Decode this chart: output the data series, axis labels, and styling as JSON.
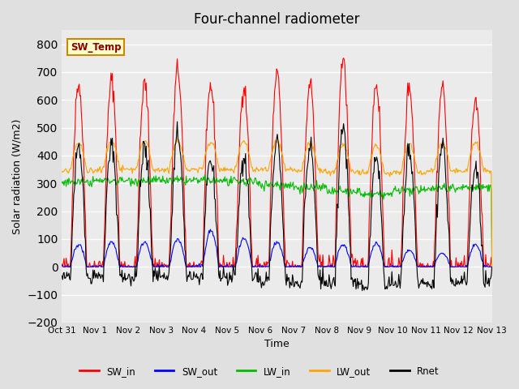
{
  "title": "Four-channel radiometer",
  "xlabel": "Time",
  "ylabel": "Solar radiation (W/m2)",
  "ylim": [
    -200,
    850
  ],
  "yticks": [
    -200,
    -100,
    0,
    100,
    200,
    300,
    400,
    500,
    600,
    700,
    800
  ],
  "x_tick_labels": [
    "Oct 31",
    "Nov 1",
    "Nov 2",
    "Nov 3",
    "Nov 4",
    "Nov 5",
    "Nov 6",
    "Nov 7",
    "Nov 8",
    "Nov 9",
    "Nov 10",
    "Nov 11",
    "Nov 12",
    "Nov 13"
  ],
  "colors": {
    "SW_in": "#ff0000",
    "SW_out": "#0000ff",
    "LW_in": "#00bb00",
    "LW_out": "#ffa500",
    "Rnet": "#000000"
  },
  "legend_label": "SW_Temp",
  "background_color": "#e0e0e0",
  "plot_bg_color": "#ebebeb",
  "title_fontsize": 12
}
